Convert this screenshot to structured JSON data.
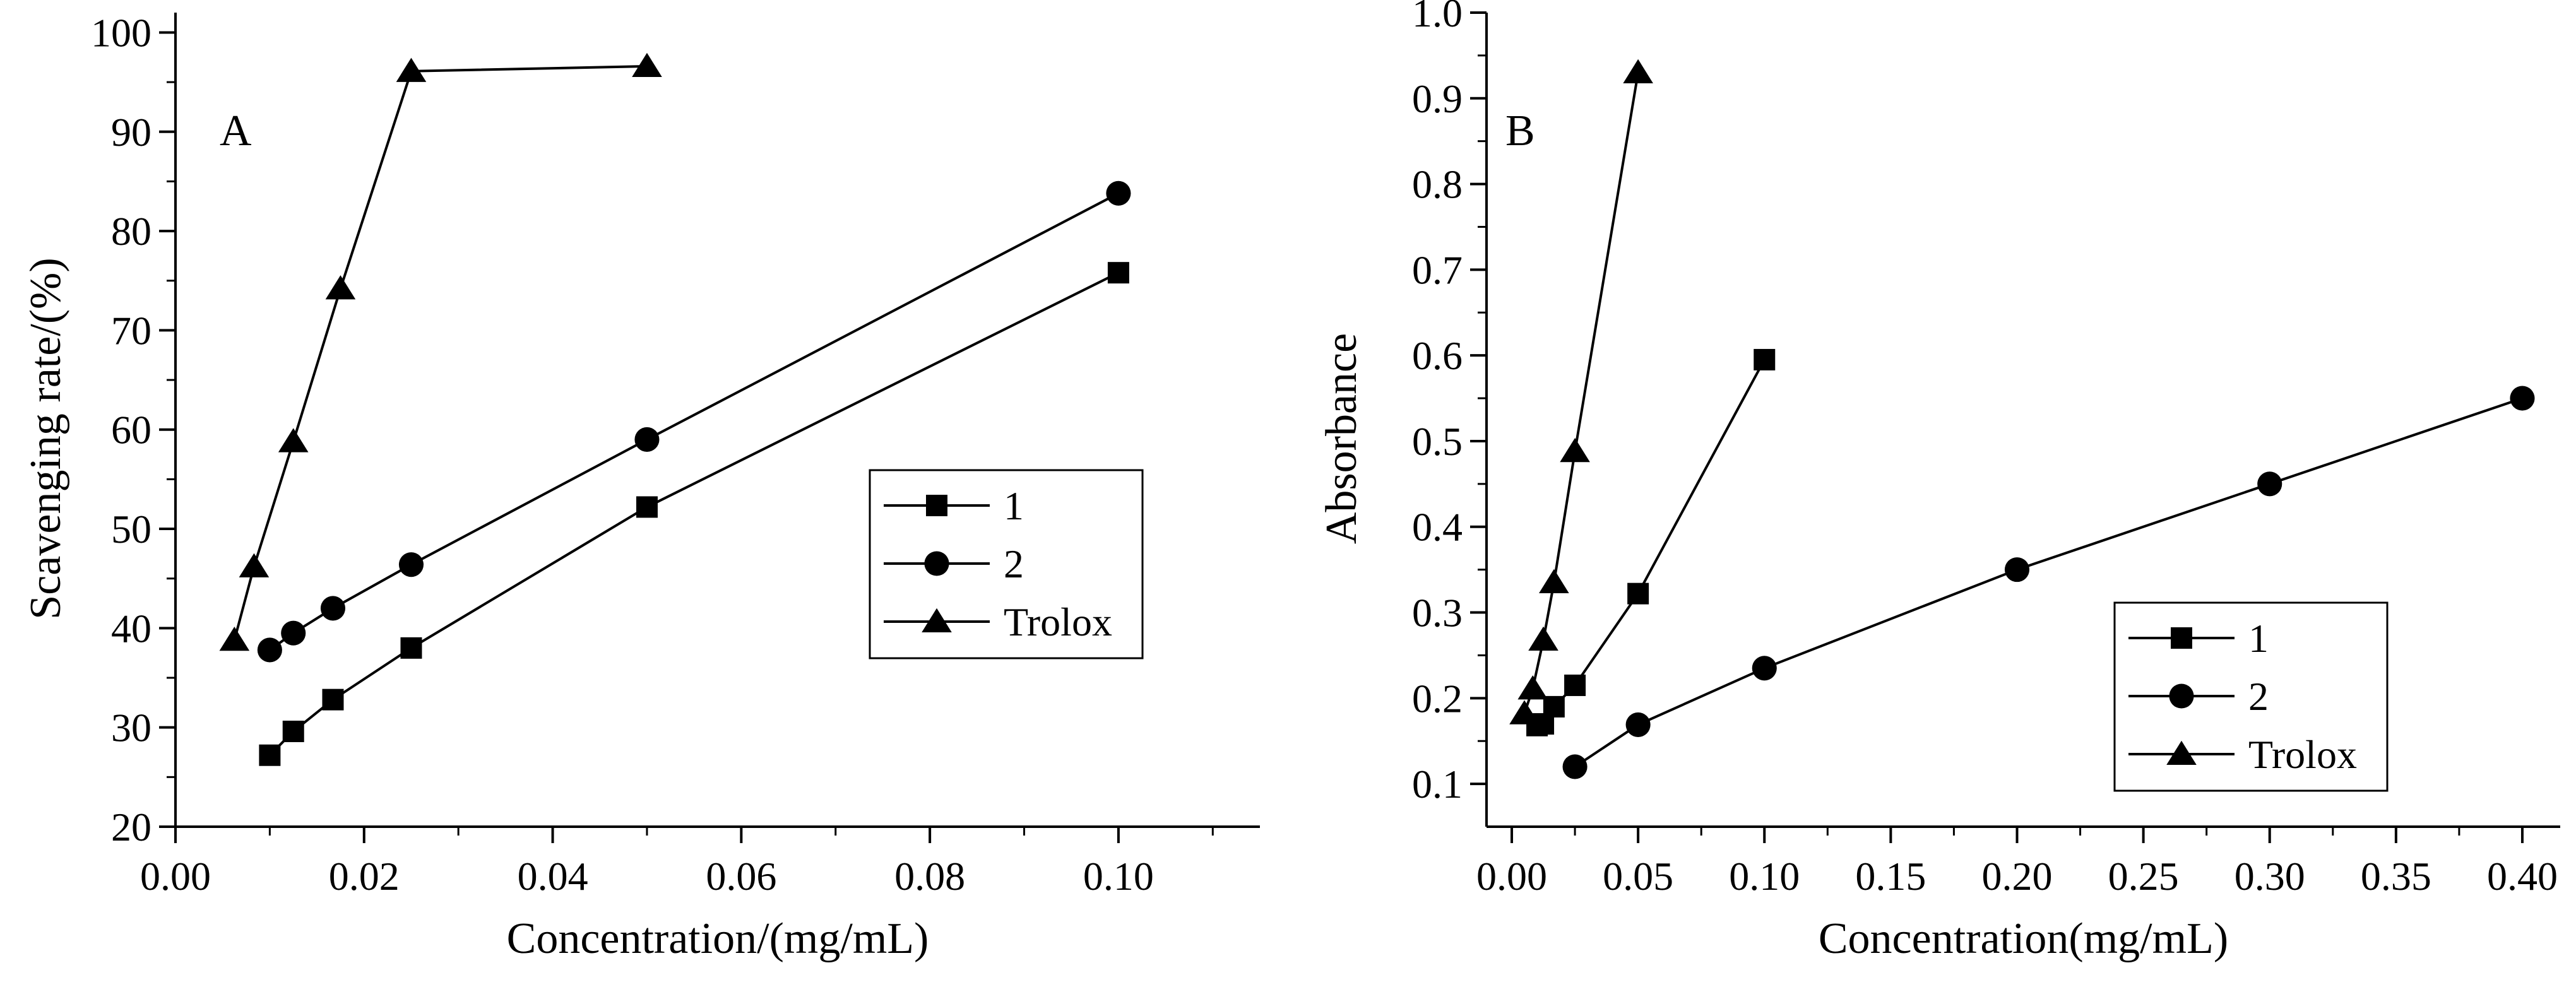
{
  "chart_data": [
    {
      "type": "line",
      "panel_label": "A",
      "xlabel": "Concentration/(mg/mL)",
      "ylabel": "Scavenging  rate/(%)",
      "xlim": [
        0,
        0.115
      ],
      "ylim": [
        20,
        102
      ],
      "xticks": [
        0.0,
        0.02,
        0.04,
        0.06,
        0.08,
        0.1
      ],
      "xtick_labels": [
        "0.00",
        "0.02",
        "0.04",
        "0.06",
        "0.08",
        "0.10"
      ],
      "yticks": [
        20,
        30,
        40,
        50,
        60,
        70,
        80,
        90,
        100
      ],
      "ytick_labels": [
        "20",
        "30",
        "40",
        "50",
        "60",
        "70",
        "80",
        "90",
        "100"
      ],
      "legend_position": "center-right",
      "series": [
        {
          "name": "1",
          "marker": "square",
          "x": [
            0.01,
            0.0125,
            0.0167,
            0.025,
            0.05,
            0.1
          ],
          "y": [
            27.2,
            29.6,
            32.8,
            38.0,
            52.2,
            75.8
          ]
        },
        {
          "name": "2",
          "marker": "circle",
          "x": [
            0.01,
            0.0125,
            0.0167,
            0.025,
            0.05,
            0.1
          ],
          "y": [
            37.8,
            39.5,
            42.0,
            46.4,
            59.0,
            83.8
          ]
        },
        {
          "name": "Trolox",
          "marker": "triangle",
          "x": [
            0.00625,
            0.00833,
            0.0125,
            0.0175,
            0.025,
            0.05
          ],
          "y": [
            38.8,
            46.2,
            58.8,
            74.2,
            96.1,
            96.6
          ]
        }
      ]
    },
    {
      "type": "line",
      "panel_label": "B",
      "xlabel": "Concentration(mg/mL)",
      "ylabel": "Absorbance",
      "xlim": [
        -0.01,
        0.415
      ],
      "ylim": [
        0.05,
        1.0
      ],
      "xticks": [
        0.0,
        0.05,
        0.1,
        0.15,
        0.2,
        0.25,
        0.3,
        0.35,
        0.4
      ],
      "xtick_labels": [
        "0.00",
        "0.05",
        "0.10",
        "0.15",
        "0.20",
        "0.25",
        "0.30",
        "0.35",
        "0.40"
      ],
      "yticks": [
        0.1,
        0.2,
        0.3,
        0.4,
        0.5,
        0.6,
        0.7,
        0.8,
        0.9,
        1.0
      ],
      "ytick_labels": [
        "0.1",
        "0.2",
        "0.3",
        "0.4",
        "0.5",
        "0.6",
        "0.7",
        "0.8",
        "0.9",
        "1.0"
      ],
      "legend_position": "lower-right",
      "series": [
        {
          "name": "1",
          "marker": "square",
          "x": [
            0.01,
            0.0125,
            0.0167,
            0.025,
            0.05,
            0.1
          ],
          "y": [
            0.168,
            0.17,
            0.19,
            0.215,
            0.322,
            0.595
          ]
        },
        {
          "name": "2",
          "marker": "circle",
          "x": [
            0.025,
            0.05,
            0.1,
            0.2,
            0.3,
            0.4
          ],
          "y": [
            0.12,
            0.169,
            0.235,
            0.35,
            0.45,
            0.55
          ]
        },
        {
          "name": "Trolox",
          "marker": "triangle",
          "x": [
            0.005,
            0.0083,
            0.0125,
            0.0167,
            0.025,
            0.05
          ],
          "y": [
            0.182,
            0.211,
            0.268,
            0.335,
            0.488,
            0.93
          ]
        }
      ]
    }
  ]
}
